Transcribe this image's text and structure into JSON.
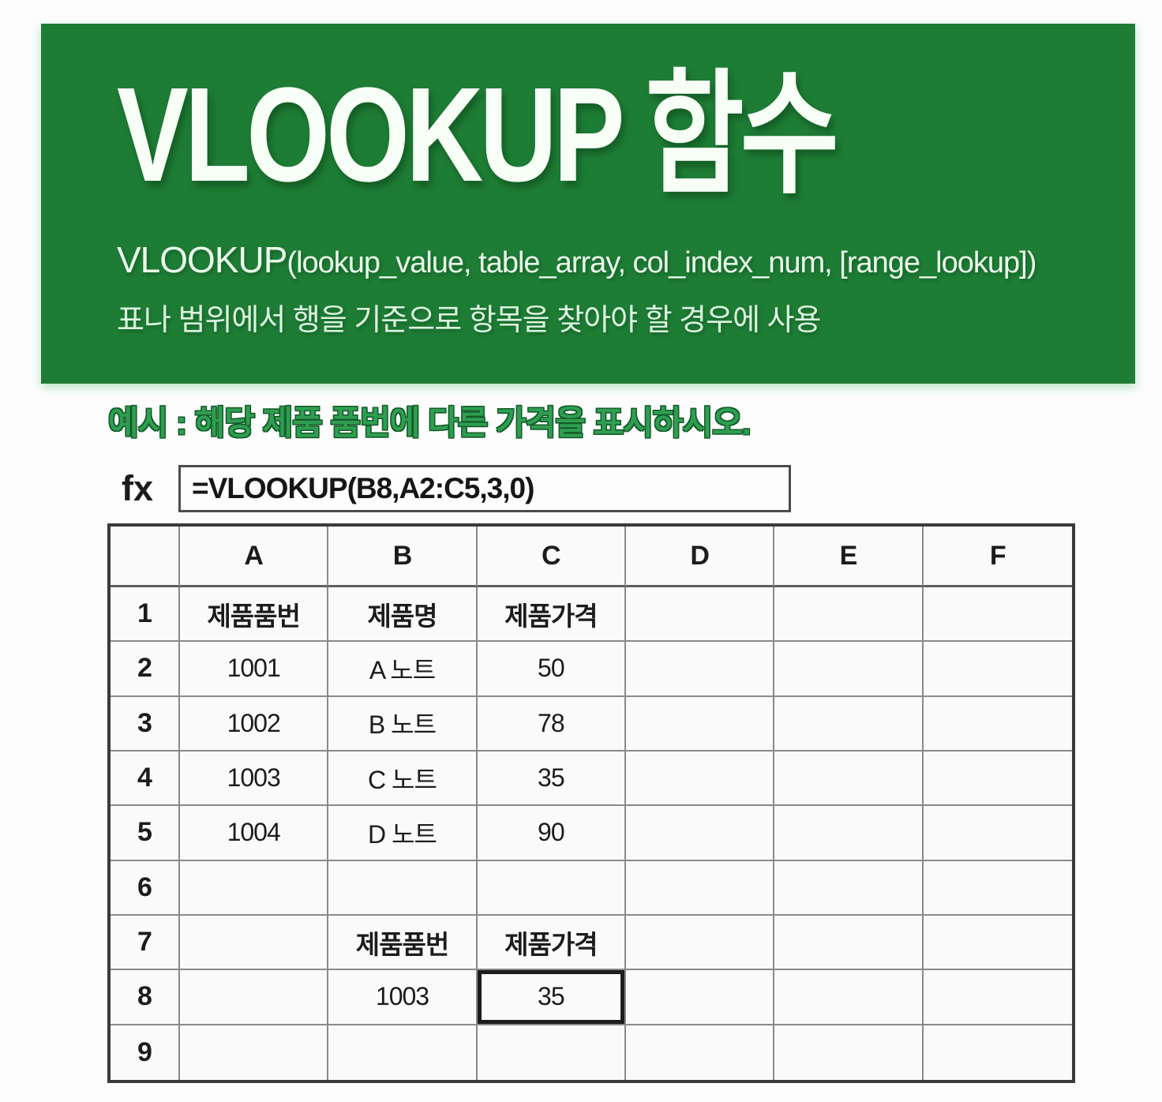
{
  "colors": {
    "banner_green": "#1e7d35",
    "heading_green": "#2f9e51",
    "grid_line": "#8a8a8a",
    "outer_border": "#3a3a3a",
    "selected_cell_border": "#1c1c1c"
  },
  "banner": {
    "title": "VLOOKUP 함수",
    "syntax_function": "VLOOKUP",
    "syntax_args": "(lookup_value, table_array, col_index_num, [range_lookup])",
    "description": "표나 범위에서 행을 기준으로 항목을 찾아야 할 경우에 사용"
  },
  "example": {
    "heading": "예시 : 해당 제품 품번에 다른 가격을 표시하시오."
  },
  "formula_bar": {
    "fx_label": "fx",
    "formula": "=VLOOKUP(B8,A2:C5,3,0)"
  },
  "sheet": {
    "column_headers": [
      "A",
      "B",
      "C",
      "D",
      "E",
      "F"
    ],
    "selected_cell": "C8",
    "rows": [
      {
        "num": "1",
        "cells": [
          "제품품번",
          "제품명",
          "제품가격",
          "",
          "",
          ""
        ]
      },
      {
        "num": "2",
        "cells": [
          "1001",
          "A 노트",
          "50",
          "",
          "",
          ""
        ]
      },
      {
        "num": "3",
        "cells": [
          "1002",
          "B 노트",
          "78",
          "",
          "",
          ""
        ]
      },
      {
        "num": "4",
        "cells": [
          "1003",
          "C 노트",
          "35",
          "",
          "",
          ""
        ]
      },
      {
        "num": "5",
        "cells": [
          "1004",
          "D 노트",
          "90",
          "",
          "",
          ""
        ]
      },
      {
        "num": "6",
        "cells": [
          "",
          "",
          "",
          "",
          "",
          ""
        ]
      },
      {
        "num": "7",
        "cells": [
          "",
          "제품품번",
          "제품가격",
          "",
          "",
          ""
        ]
      },
      {
        "num": "8",
        "cells": [
          "",
          "1003",
          "35",
          "",
          "",
          ""
        ]
      },
      {
        "num": "9",
        "cells": [
          "",
          "",
          "",
          "",
          "",
          ""
        ]
      }
    ]
  }
}
